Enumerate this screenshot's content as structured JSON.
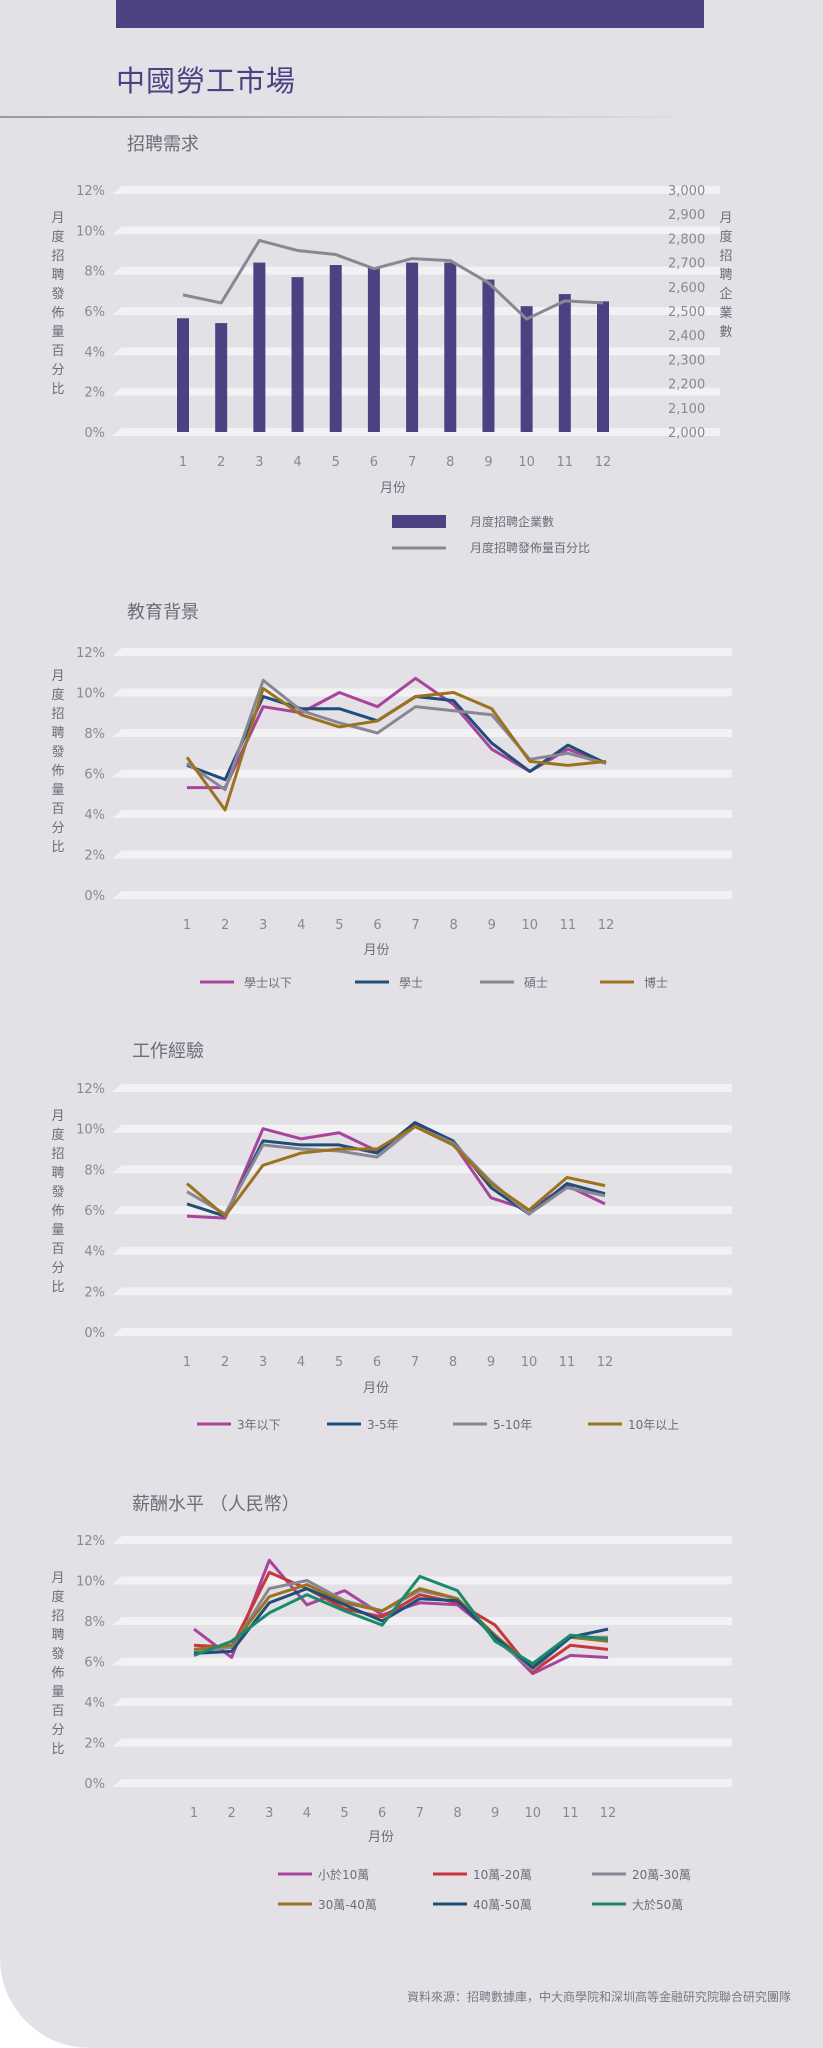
{
  "title": "中國勞工市場",
  "source": "資料來源：招聘數據庫，中大商學院和深圳高等金融研究院聯合研究團隊",
  "colors": {
    "accent": "#4c4282",
    "purple_bar": "#4c4282",
    "gray_line": "#8a8795",
    "magenta": "#a8449c",
    "navy": "#1f4e79",
    "gray": "#8a8795",
    "gold": "#9a7220",
    "red": "#c8363a",
    "teal": "#1b8a6b"
  },
  "chart_data": [
    {
      "type": "bar+line",
      "title": "招聘需求",
      "xlabel": "月份",
      "ylabel": "月度招聘發佈量百分比",
      "y2label": "月度招聘企業數",
      "categories": [
        "1",
        "2",
        "3",
        "4",
        "5",
        "6",
        "7",
        "8",
        "9",
        "10",
        "11",
        "12"
      ],
      "ylim": [
        0,
        12
      ],
      "yticks": [
        "0%",
        "2%",
        "4%",
        "6%",
        "8%",
        "10%",
        "12%"
      ],
      "y2lim": [
        2000,
        3000
      ],
      "y2ticks": [
        "2,000",
        "2,100",
        "2,200",
        "2,300",
        "2,400",
        "2,500",
        "2,600",
        "2,700",
        "2,800",
        "2,900",
        "3,000"
      ],
      "bar_series": {
        "name": "月度招聘企業數",
        "values": [
          2470,
          2450,
          2700,
          2640,
          2690,
          2680,
          2700,
          2700,
          2630,
          2520,
          2570,
          2540
        ]
      },
      "line_series": {
        "name": "月度招聘發佈量百分比",
        "values": [
          6.8,
          6.4,
          9.5,
          9.0,
          8.8,
          8.1,
          8.6,
          8.5,
          7.4,
          5.6,
          6.5,
          6.4
        ]
      },
      "grid": true,
      "legend": "bottom"
    },
    {
      "type": "line",
      "title": "教育背景",
      "xlabel": "月份",
      "ylabel": "月度招聘發佈量百分比",
      "categories": [
        "1",
        "2",
        "3",
        "4",
        "5",
        "6",
        "7",
        "8",
        "9",
        "10",
        "11",
        "12"
      ],
      "ylim": [
        0,
        12
      ],
      "yticks": [
        "0%",
        "2%",
        "4%",
        "6%",
        "8%",
        "10%",
        "12%"
      ],
      "series": [
        {
          "name": "學士以下",
          "color": "#a8449c",
          "values": [
            5.3,
            5.3,
            9.3,
            9.0,
            10.0,
            9.3,
            10.7,
            9.4,
            7.2,
            6.1,
            7.2,
            6.5
          ]
        },
        {
          "name": "學士",
          "color": "#1f4e79",
          "values": [
            6.4,
            5.7,
            9.8,
            9.2,
            9.2,
            8.6,
            9.8,
            9.6,
            7.5,
            6.1,
            7.4,
            6.5
          ]
        },
        {
          "name": "碩士",
          "color": "#8a8795",
          "values": [
            6.5,
            5.2,
            10.6,
            9.1,
            8.5,
            8.0,
            9.3,
            9.1,
            8.9,
            6.7,
            7.0,
            6.5
          ]
        },
        {
          "name": "博士",
          "color": "#9a7220",
          "values": [
            6.8,
            4.2,
            10.2,
            8.9,
            8.3,
            8.6,
            9.8,
            10.0,
            9.2,
            6.6,
            6.4,
            6.6
          ]
        }
      ],
      "grid": true,
      "legend": "bottom"
    },
    {
      "type": "line",
      "title": "工作經驗",
      "xlabel": "月份",
      "ylabel": "月度招聘發佈量百分比",
      "categories": [
        "1",
        "2",
        "3",
        "4",
        "5",
        "6",
        "7",
        "8",
        "9",
        "10",
        "11",
        "12"
      ],
      "ylim": [
        0,
        12
      ],
      "yticks": [
        "0%",
        "2%",
        "4%",
        "6%",
        "8%",
        "10%",
        "12%"
      ],
      "series": [
        {
          "name": "3年以下",
          "color": "#a8449c",
          "values": [
            5.7,
            5.6,
            10.0,
            9.5,
            9.8,
            8.9,
            10.2,
            9.3,
            6.6,
            6.0,
            7.2,
            6.3
          ]
        },
        {
          "name": "3-5年",
          "color": "#1f4e79",
          "values": [
            6.3,
            5.7,
            9.4,
            9.2,
            9.2,
            8.8,
            10.3,
            9.4,
            7.1,
            5.8,
            7.3,
            6.8
          ]
        },
        {
          "name": "5-10年",
          "color": "#8a8795",
          "values": [
            6.9,
            5.8,
            9.2,
            9.0,
            8.9,
            8.6,
            10.1,
            9.3,
            7.4,
            5.8,
            7.1,
            6.7
          ]
        },
        {
          "name": "10年以上",
          "color": "#9a7220",
          "values": [
            7.3,
            5.7,
            8.2,
            8.8,
            9.0,
            9.0,
            10.1,
            9.2,
            7.3,
            6.0,
            7.6,
            7.2
          ]
        }
      ],
      "grid": true,
      "legend": "bottom"
    },
    {
      "type": "line",
      "title": "薪酬水平 （人民幣）",
      "xlabel": "月份",
      "ylabel": "月度招聘發佈量百分比",
      "categories": [
        "1",
        "2",
        "3",
        "4",
        "5",
        "6",
        "7",
        "8",
        "9",
        "10",
        "11",
        "12"
      ],
      "ylim": [
        0,
        12
      ],
      "yticks": [
        "0%",
        "2%",
        "4%",
        "6%",
        "8%",
        "10%",
        "12%"
      ],
      "series": [
        {
          "name": "小於10萬",
          "color": "#a8449c",
          "values": [
            7.6,
            6.2,
            11.0,
            8.8,
            9.5,
            8.3,
            8.9,
            8.8,
            7.3,
            5.4,
            6.3,
            6.2
          ]
        },
        {
          "name": "10萬-20萬",
          "color": "#c8363a",
          "values": [
            6.8,
            6.7,
            10.4,
            9.6,
            8.6,
            8.2,
            9.3,
            8.9,
            7.8,
            5.5,
            6.8,
            6.6
          ]
        },
        {
          "name": "20萬-30萬",
          "color": "#8a8795",
          "values": [
            6.5,
            6.7,
            9.6,
            10.0,
            9.0,
            8.5,
            9.5,
            9.1,
            7.1,
            5.6,
            7.2,
            7.2
          ]
        },
        {
          "name": "30萬-40萬",
          "color": "#9a7220",
          "values": [
            6.6,
            6.8,
            9.2,
            9.8,
            8.9,
            8.5,
            9.6,
            9.1,
            7.3,
            5.7,
            7.2,
            7.0
          ]
        },
        {
          "name": "40萬-50萬",
          "color": "#1f4e79",
          "values": [
            6.4,
            6.5,
            8.9,
            9.6,
            8.8,
            8.0,
            9.1,
            9.0,
            7.2,
            5.7,
            7.2,
            7.6
          ]
        },
        {
          "name": "大於50萬",
          "color": "#1b8a6b",
          "values": [
            6.3,
            7.0,
            8.4,
            9.3,
            8.5,
            7.8,
            10.2,
            9.5,
            7.0,
            5.9,
            7.3,
            7.1
          ]
        }
      ],
      "grid": true,
      "legend": "bottom"
    }
  ]
}
